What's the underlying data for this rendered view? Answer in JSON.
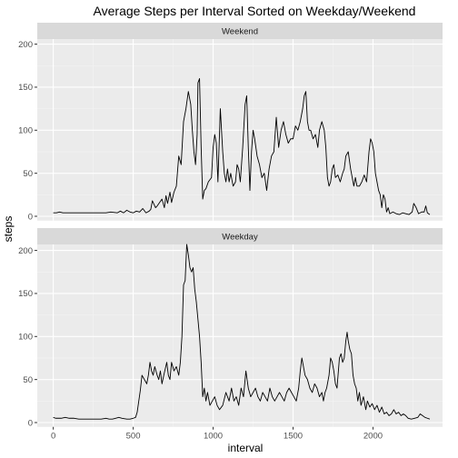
{
  "chart_data": {
    "type": "line",
    "title": "Average Steps per Interval Sorted on Weekday/Weekend",
    "xlabel": "interval",
    "ylabel": "steps",
    "xlim": [
      -100,
      2435
    ],
    "ylim": [
      -5,
      222
    ],
    "x_ticks": [
      0,
      500,
      1000,
      1500,
      2000
    ],
    "y_ticks": [
      0,
      50,
      100,
      150,
      200
    ],
    "grid": true,
    "colors": {
      "panel": "#ebebeb",
      "strip": "#d9d9d9",
      "grid_major": "#ffffff",
      "line": "#000000"
    },
    "panels": [
      {
        "strip": "Weekend",
        "points": [
          [
            0,
            4
          ],
          [
            20,
            4
          ],
          [
            40,
            5
          ],
          [
            60,
            4
          ],
          [
            80,
            4
          ],
          [
            100,
            4
          ],
          [
            150,
            4
          ],
          [
            200,
            4
          ],
          [
            250,
            4
          ],
          [
            300,
            4
          ],
          [
            330,
            4
          ],
          [
            360,
            5
          ],
          [
            400,
            4
          ],
          [
            420,
            6
          ],
          [
            440,
            4
          ],
          [
            460,
            7
          ],
          [
            480,
            5
          ],
          [
            500,
            4
          ],
          [
            520,
            6
          ],
          [
            540,
            5
          ],
          [
            560,
            9
          ],
          [
            580,
            4
          ],
          [
            600,
            6
          ],
          [
            610,
            8
          ],
          [
            620,
            18
          ],
          [
            640,
            10
          ],
          [
            650,
            12
          ],
          [
            665,
            16
          ],
          [
            680,
            20
          ],
          [
            695,
            10
          ],
          [
            705,
            24
          ],
          [
            715,
            15
          ],
          [
            730,
            28
          ],
          [
            740,
            16
          ],
          [
            755,
            28
          ],
          [
            770,
            35
          ],
          [
            785,
            70
          ],
          [
            800,
            60
          ],
          [
            815,
            110
          ],
          [
            830,
            125
          ],
          [
            845,
            145
          ],
          [
            860,
            130
          ],
          [
            870,
            100
          ],
          [
            880,
            75
          ],
          [
            890,
            60
          ],
          [
            900,
            95
          ],
          [
            905,
            155
          ],
          [
            915,
            160
          ],
          [
            925,
            80
          ],
          [
            935,
            20
          ],
          [
            945,
            30
          ],
          [
            955,
            32
          ],
          [
            970,
            40
          ],
          [
            990,
            45
          ],
          [
            1000,
            80
          ],
          [
            1010,
            95
          ],
          [
            1020,
            85
          ],
          [
            1030,
            40
          ],
          [
            1045,
            125
          ],
          [
            1060,
            75
          ],
          [
            1070,
            50
          ],
          [
            1080,
            40
          ],
          [
            1090,
            55
          ],
          [
            1100,
            40
          ],
          [
            1110,
            50
          ],
          [
            1125,
            35
          ],
          [
            1140,
            40
          ],
          [
            1150,
            60
          ],
          [
            1160,
            55
          ],
          [
            1170,
            40
          ],
          [
            1185,
            80
          ],
          [
            1200,
            130
          ],
          [
            1210,
            140
          ],
          [
            1220,
            80
          ],
          [
            1230,
            30
          ],
          [
            1240,
            75
          ],
          [
            1250,
            100
          ],
          [
            1260,
            90
          ],
          [
            1275,
            70
          ],
          [
            1290,
            60
          ],
          [
            1305,
            45
          ],
          [
            1320,
            50
          ],
          [
            1335,
            30
          ],
          [
            1350,
            55
          ],
          [
            1365,
            70
          ],
          [
            1380,
            75
          ],
          [
            1395,
            115
          ],
          [
            1410,
            80
          ],
          [
            1425,
            100
          ],
          [
            1440,
            110
          ],
          [
            1455,
            95
          ],
          [
            1470,
            85
          ],
          [
            1485,
            90
          ],
          [
            1500,
            90
          ],
          [
            1515,
            105
          ],
          [
            1530,
            100
          ],
          [
            1545,
            110
          ],
          [
            1560,
            125
          ],
          [
            1570,
            140
          ],
          [
            1580,
            145
          ],
          [
            1590,
            110
          ],
          [
            1600,
            100
          ],
          [
            1610,
            100
          ],
          [
            1625,
            90
          ],
          [
            1640,
            95
          ],
          [
            1655,
            80
          ],
          [
            1665,
            100
          ],
          [
            1680,
            110
          ],
          [
            1695,
            100
          ],
          [
            1705,
            80
          ],
          [
            1715,
            45
          ],
          [
            1725,
            35
          ],
          [
            1735,
            40
          ],
          [
            1745,
            55
          ],
          [
            1755,
            60
          ],
          [
            1765,
            45
          ],
          [
            1780,
            48
          ],
          [
            1795,
            40
          ],
          [
            1810,
            50
          ],
          [
            1820,
            55
          ],
          [
            1830,
            70
          ],
          [
            1845,
            75
          ],
          [
            1860,
            55
          ],
          [
            1870,
            45
          ],
          [
            1880,
            35
          ],
          [
            1890,
            45
          ],
          [
            1900,
            35
          ],
          [
            1915,
            35
          ],
          [
            1930,
            40
          ],
          [
            1945,
            48
          ],
          [
            1960,
            40
          ],
          [
            1975,
            75
          ],
          [
            1985,
            90
          ],
          [
            1995,
            85
          ],
          [
            2005,
            75
          ],
          [
            2015,
            50
          ],
          [
            2025,
            40
          ],
          [
            2035,
            30
          ],
          [
            2045,
            25
          ],
          [
            2055,
            10
          ],
          [
            2065,
            25
          ],
          [
            2075,
            20
          ],
          [
            2085,
            5
          ],
          [
            2095,
            10
          ],
          [
            2105,
            3
          ],
          [
            2125,
            5
          ],
          [
            2145,
            3
          ],
          [
            2165,
            2
          ],
          [
            2185,
            4
          ],
          [
            2205,
            3
          ],
          [
            2225,
            2
          ],
          [
            2245,
            5
          ],
          [
            2255,
            15
          ],
          [
            2270,
            10
          ],
          [
            2285,
            3
          ],
          [
            2305,
            5
          ],
          [
            2320,
            5
          ],
          [
            2330,
            12
          ],
          [
            2340,
            4
          ],
          [
            2355,
            2
          ]
        ]
      },
      {
        "strip": "Weekday",
        "points": [
          [
            0,
            6
          ],
          [
            15,
            5
          ],
          [
            30,
            5
          ],
          [
            50,
            5
          ],
          [
            75,
            6
          ],
          [
            100,
            5
          ],
          [
            130,
            5
          ],
          [
            160,
            4
          ],
          [
            200,
            4
          ],
          [
            250,
            4
          ],
          [
            300,
            4
          ],
          [
            330,
            5
          ],
          [
            350,
            4
          ],
          [
            370,
            4
          ],
          [
            390,
            5
          ],
          [
            410,
            6
          ],
          [
            430,
            5
          ],
          [
            460,
            4
          ],
          [
            480,
            4
          ],
          [
            500,
            5
          ],
          [
            515,
            6
          ],
          [
            525,
            12
          ],
          [
            535,
            25
          ],
          [
            545,
            38
          ],
          [
            555,
            55
          ],
          [
            570,
            50
          ],
          [
            585,
            45
          ],
          [
            595,
            55
          ],
          [
            605,
            70
          ],
          [
            615,
            60
          ],
          [
            625,
            55
          ],
          [
            635,
            65
          ],
          [
            650,
            55
          ],
          [
            660,
            50
          ],
          [
            670,
            60
          ],
          [
            680,
            45
          ],
          [
            695,
            58
          ],
          [
            710,
            70
          ],
          [
            720,
            55
          ],
          [
            730,
            50
          ],
          [
            740,
            70
          ],
          [
            755,
            60
          ],
          [
            770,
            65
          ],
          [
            785,
            55
          ],
          [
            795,
            70
          ],
          [
            805,
            100
          ],
          [
            815,
            160
          ],
          [
            825,
            165
          ],
          [
            835,
            207
          ],
          [
            845,
            195
          ],
          [
            855,
            180
          ],
          [
            865,
            175
          ],
          [
            875,
            180
          ],
          [
            885,
            155
          ],
          [
            895,
            140
          ],
          [
            905,
            120
          ],
          [
            915,
            100
          ],
          [
            925,
            70
          ],
          [
            935,
            30
          ],
          [
            945,
            40
          ],
          [
            955,
            25
          ],
          [
            965,
            35
          ],
          [
            980,
            20
          ],
          [
            995,
            25
          ],
          [
            1010,
            30
          ],
          [
            1025,
            20
          ],
          [
            1040,
            15
          ],
          [
            1060,
            20
          ],
          [
            1080,
            35
          ],
          [
            1100,
            25
          ],
          [
            1115,
            40
          ],
          [
            1130,
            25
          ],
          [
            1145,
            30
          ],
          [
            1160,
            20
          ],
          [
            1175,
            40
          ],
          [
            1190,
            30
          ],
          [
            1205,
            60
          ],
          [
            1220,
            40
          ],
          [
            1235,
            30
          ],
          [
            1250,
            35
          ],
          [
            1265,
            40
          ],
          [
            1280,
            30
          ],
          [
            1295,
            25
          ],
          [
            1310,
            35
          ],
          [
            1325,
            30
          ],
          [
            1340,
            25
          ],
          [
            1355,
            40
          ],
          [
            1370,
            30
          ],
          [
            1385,
            25
          ],
          [
            1400,
            30
          ],
          [
            1415,
            35
          ],
          [
            1430,
            30
          ],
          [
            1445,
            25
          ],
          [
            1460,
            35
          ],
          [
            1475,
            40
          ],
          [
            1490,
            35
          ],
          [
            1505,
            30
          ],
          [
            1520,
            25
          ],
          [
            1535,
            40
          ],
          [
            1545,
            60
          ],
          [
            1555,
            75
          ],
          [
            1565,
            65
          ],
          [
            1575,
            55
          ],
          [
            1590,
            50
          ],
          [
            1605,
            40
          ],
          [
            1620,
            35
          ],
          [
            1635,
            45
          ],
          [
            1650,
            40
          ],
          [
            1665,
            30
          ],
          [
            1680,
            35
          ],
          [
            1690,
            25
          ],
          [
            1700,
            35
          ],
          [
            1710,
            40
          ],
          [
            1725,
            55
          ],
          [
            1735,
            75
          ],
          [
            1745,
            70
          ],
          [
            1755,
            60
          ],
          [
            1765,
            45
          ],
          [
            1775,
            40
          ],
          [
            1790,
            75
          ],
          [
            1800,
            80
          ],
          [
            1810,
            70
          ],
          [
            1820,
            75
          ],
          [
            1830,
            95
          ],
          [
            1838,
            105
          ],
          [
            1845,
            95
          ],
          [
            1855,
            85
          ],
          [
            1865,
            80
          ],
          [
            1875,
            55
          ],
          [
            1885,
            45
          ],
          [
            1895,
            40
          ],
          [
            1905,
            25
          ],
          [
            1915,
            35
          ],
          [
            1925,
            20
          ],
          [
            1940,
            30
          ],
          [
            1955,
            15
          ],
          [
            1965,
            25
          ],
          [
            1980,
            18
          ],
          [
            1995,
            22
          ],
          [
            2010,
            15
          ],
          [
            2025,
            20
          ],
          [
            2040,
            12
          ],
          [
            2055,
            18
          ],
          [
            2070,
            10
          ],
          [
            2085,
            12
          ],
          [
            2100,
            8
          ],
          [
            2115,
            10
          ],
          [
            2130,
            15
          ],
          [
            2145,
            10
          ],
          [
            2160,
            12
          ],
          [
            2175,
            8
          ],
          [
            2190,
            10
          ],
          [
            2205,
            8
          ],
          [
            2220,
            5
          ],
          [
            2240,
            4
          ],
          [
            2260,
            5
          ],
          [
            2280,
            6
          ],
          [
            2295,
            10
          ],
          [
            2310,
            8
          ],
          [
            2325,
            6
          ],
          [
            2340,
            5
          ],
          [
            2355,
            4
          ]
        ]
      }
    ]
  }
}
